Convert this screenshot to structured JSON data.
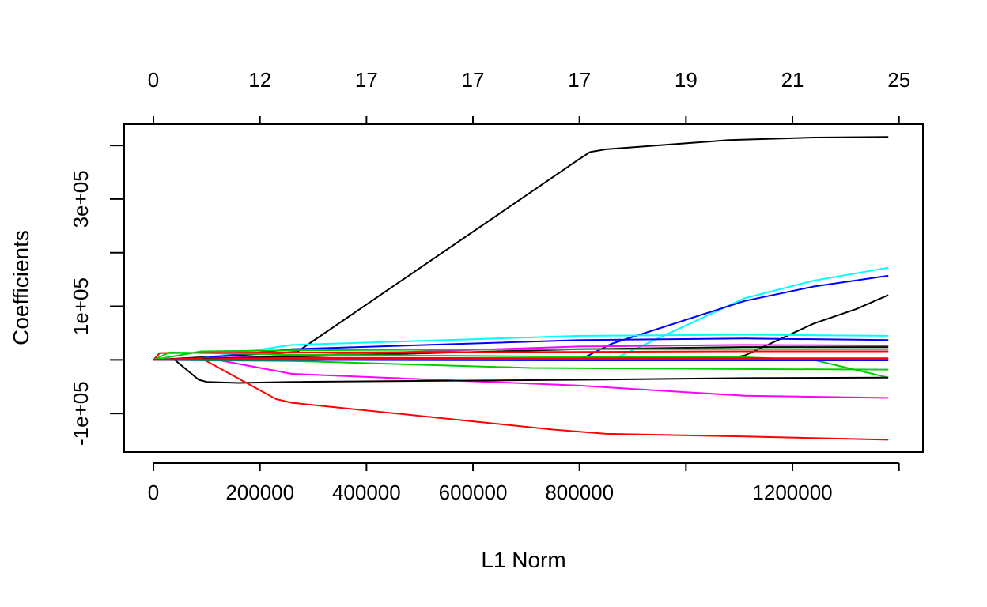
{
  "chart_data": {
    "type": "line",
    "title": "",
    "xlabel": "L1 Norm",
    "ylabel": "Coefficients",
    "xlim": [
      -55000,
      1445000
    ],
    "ylim": [
      -172000,
      440000
    ],
    "grid": false,
    "legend": "none",
    "x_ticks": [
      0,
      200000,
      400000,
      600000,
      800000,
      1000000,
      1200000,
      1400000
    ],
    "x_tick_labels": [
      "0",
      "200000",
      "400000",
      "600000",
      "800000",
      "",
      "1200000",
      ""
    ],
    "y_ticks": [
      -100000,
      0,
      100000,
      200000,
      300000,
      400000
    ],
    "y_tick_labels": [
      "-1e+05",
      "",
      "1e+05",
      "",
      "3e+05",
      ""
    ],
    "top_axis_ticks": [
      0,
      200000,
      400000,
      600000,
      800000,
      1000000,
      1200000,
      1400000
    ],
    "top_axis_labels": [
      "0",
      "12",
      "17",
      "17",
      "17",
      "19",
      "21",
      "25"
    ],
    "series": [
      {
        "color": "#000000",
        "x": [
          0,
          270000,
          800000,
          820000,
          850000,
          1080000,
          1240000,
          1380000
        ],
        "y": [
          0,
          15000,
          375000,
          388000,
          393000,
          410000,
          415000,
          416000
        ]
      },
      {
        "color": "#00FFFF",
        "x": [
          0,
          860000,
          1110000,
          1240000,
          1380000
        ],
        "y": [
          0,
          0,
          115000,
          148000,
          172000
        ]
      },
      {
        "color": "#0000FF",
        "x": [
          0,
          800000,
          860000,
          1110000,
          1240000,
          1380000
        ],
        "y": [
          0,
          0,
          30000,
          110000,
          137000,
          157000
        ]
      },
      {
        "color": "#000000",
        "x": [
          0,
          1060000,
          1110000,
          1240000,
          1320000,
          1380000
        ],
        "y": [
          0,
          0,
          8000,
          68000,
          95000,
          121000
        ]
      },
      {
        "color": "#00FFFF",
        "x": [
          0,
          90000,
          260000,
          800000,
          1110000,
          1380000
        ],
        "y": [
          0,
          3000,
          28000,
          45000,
          47000,
          45000
        ]
      },
      {
        "color": "#0000FF",
        "x": [
          0,
          90000,
          260000,
          800000,
          1110000,
          1380000
        ],
        "y": [
          0,
          3000,
          20000,
          37000,
          40000,
          37000
        ]
      },
      {
        "color": "#FF00FF",
        "x": [
          0,
          260000,
          800000,
          1110000,
          1380000
        ],
        "y": [
          0,
          8000,
          25000,
          28000,
          27000
        ]
      },
      {
        "color": "#000000",
        "x": [
          0,
          260000,
          800000,
          1110000,
          1380000
        ],
        "y": [
          0,
          6000,
          20000,
          24000,
          24000
        ]
      },
      {
        "color": "#00CD00",
        "x": [
          0,
          90000,
          260000,
          800000,
          1110000,
          1380000
        ],
        "y": [
          0,
          16000,
          18000,
          20000,
          20000,
          20000
        ]
      },
      {
        "color": "#FF0000",
        "x": [
          0,
          12000,
          260000,
          800000,
          1110000,
          1380000
        ],
        "y": [
          0,
          13000,
          14000,
          15000,
          16000,
          16000
        ]
      },
      {
        "color": "#00CD00",
        "x": [
          0,
          30000,
          260000,
          800000,
          1110000,
          1240000,
          1380000
        ],
        "y": [
          0,
          14000,
          10000,
          6000,
          5000,
          0,
          -33000
        ]
      },
      {
        "color": "#FF0000",
        "x": [
          0,
          260000,
          800000,
          1110000,
          1380000
        ],
        "y": [
          0,
          4000,
          3000,
          3000,
          3000
        ]
      },
      {
        "color": "#FF00FF",
        "x": [
          0,
          120000,
          260000,
          800000,
          1110000,
          1380000
        ],
        "y": [
          0,
          0,
          -26000,
          -48000,
          -67000,
          -71000
        ]
      },
      {
        "color": "#000000",
        "x": [
          0,
          40000,
          85000,
          100000,
          160000,
          260000,
          800000,
          1110000,
          1380000
        ],
        "y": [
          0,
          0,
          -37000,
          -41000,
          -43000,
          -41000,
          -37000,
          -34000,
          -33000
        ]
      },
      {
        "color": "#FF0000",
        "x": [
          0,
          90000,
          230000,
          260000,
          750000,
          850000,
          1110000,
          1380000
        ],
        "y": [
          0,
          3000,
          -73000,
          -80000,
          -130000,
          -138000,
          -143000,
          -149000
        ]
      },
      {
        "color": "#00CD00",
        "x": [
          0,
          260000,
          710000,
          1110000,
          1380000
        ],
        "y": [
          0,
          -2000,
          -15000,
          -17000,
          -18000
        ]
      },
      {
        "color": "#0000FF",
        "x": [
          0,
          260000,
          800000,
          1380000
        ],
        "y": [
          0,
          0,
          -1000,
          -1000
        ]
      },
      {
        "color": "#FF0000",
        "x": [
          0,
          260000,
          800000,
          1380000
        ],
        "y": [
          0,
          2000,
          1000,
          1000
        ]
      }
    ]
  }
}
